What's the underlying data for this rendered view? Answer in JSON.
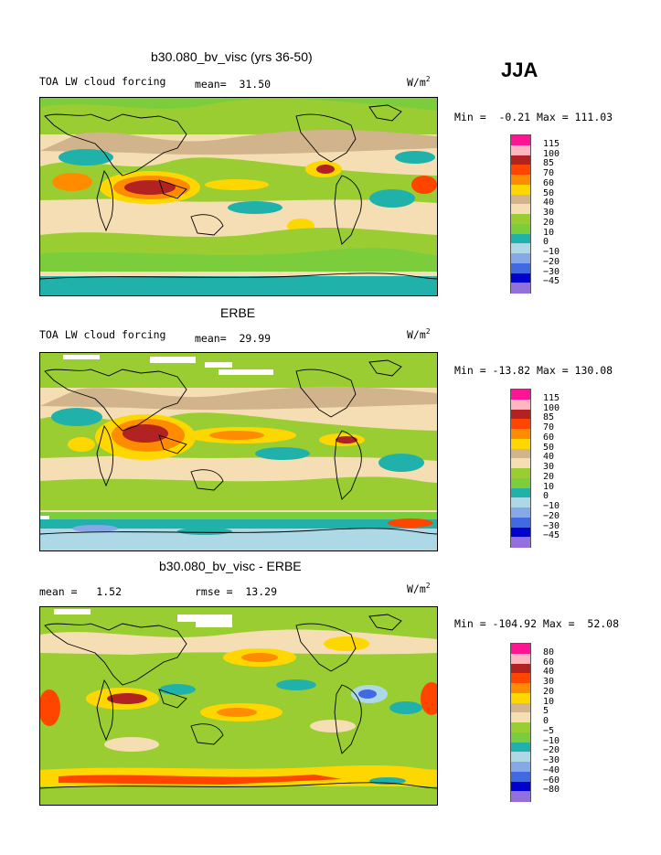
{
  "season": "JJA",
  "panels": [
    {
      "title": "b30.080_bv_visc (yrs 36-50)",
      "left_label": "TOA LW cloud forcing",
      "mid_label": "mean=  31.50",
      "units": "W/m",
      "units_sup": "2",
      "minmax": "Min =  -0.21 Max = 111.03",
      "levels": [
        "115",
        "100",
        "85",
        "70",
        "60",
        "50",
        "40",
        "30",
        "20",
        "10",
        "0",
        "−10",
        "−20",
        "−30",
        "−45"
      ],
      "colors": [
        "#ff1493",
        "#ffb6c1",
        "#b22222",
        "#ff4500",
        "#ff8c00",
        "#ffd700",
        "#d2b48c",
        "#f5deb3",
        "#9acd32",
        "#7ccd3c",
        "#20b2aa",
        "#add8e6",
        "#87a8e6",
        "#4169e1",
        "#0000cd",
        "#9370db"
      ]
    },
    {
      "title": "ERBE",
      "left_label": "TOA LW cloud forcing",
      "mid_label": "mean=  29.99",
      "units": "W/m",
      "units_sup": "2",
      "minmax": "Min = -13.82 Max = 130.08",
      "levels": [
        "115",
        "100",
        "85",
        "70",
        "60",
        "50",
        "40",
        "30",
        "20",
        "10",
        "0",
        "−10",
        "−20",
        "−30",
        "−45"
      ],
      "colors": [
        "#ff1493",
        "#ffb6c1",
        "#b22222",
        "#ff4500",
        "#ff8c00",
        "#ffd700",
        "#d2b48c",
        "#f5deb3",
        "#9acd32",
        "#7ccd3c",
        "#20b2aa",
        "#add8e6",
        "#87a8e6",
        "#4169e1",
        "#0000cd",
        "#9370db"
      ]
    },
    {
      "title": "b30.080_bv_visc - ERBE",
      "left_label": "mean =   1.52",
      "mid_label": "rmse =  13.29",
      "units": "W/m",
      "units_sup": "2",
      "minmax": "Min = -104.92 Max =  52.08",
      "levels": [
        "80",
        "60",
        "40",
        "30",
        "20",
        "10",
        "5",
        "0",
        "−5",
        "−10",
        "−20",
        "−30",
        "−40",
        "−60",
        "−80"
      ],
      "colors": [
        "#ff1493",
        "#ffb6c1",
        "#b22222",
        "#ff4500",
        "#ff8c00",
        "#ffd700",
        "#d2b48c",
        "#f5deb3",
        "#9acd32",
        "#7ccd3c",
        "#20b2aa",
        "#add8e6",
        "#87a8e6",
        "#4169e1",
        "#0000cd",
        "#9370db"
      ]
    }
  ],
  "chart_data": [
    {
      "type": "heatmap",
      "title": "b30.080_bv_visc (yrs 36-50)",
      "variable": "TOA LW cloud forcing",
      "season": "JJA",
      "mean": 31.5,
      "min": -0.21,
      "max": 111.03,
      "units": "W/m2",
      "contour_levels": [
        -45,
        -30,
        -20,
        -10,
        0,
        10,
        20,
        30,
        40,
        50,
        60,
        70,
        85,
        100,
        115
      ]
    },
    {
      "type": "heatmap",
      "title": "ERBE",
      "variable": "TOA LW cloud forcing",
      "season": "JJA",
      "mean": 29.99,
      "min": -13.82,
      "max": 130.08,
      "units": "W/m2",
      "contour_levels": [
        -45,
        -30,
        -20,
        -10,
        0,
        10,
        20,
        30,
        40,
        50,
        60,
        70,
        85,
        100,
        115
      ]
    },
    {
      "type": "heatmap",
      "title": "b30.080_bv_visc - ERBE",
      "season": "JJA",
      "mean": 1.52,
      "rmse": 13.29,
      "min": -104.92,
      "max": 52.08,
      "units": "W/m2",
      "contour_levels": [
        -80,
        -60,
        -40,
        -30,
        -20,
        -10,
        -5,
        0,
        5,
        10,
        20,
        30,
        40,
        60,
        80
      ]
    }
  ]
}
